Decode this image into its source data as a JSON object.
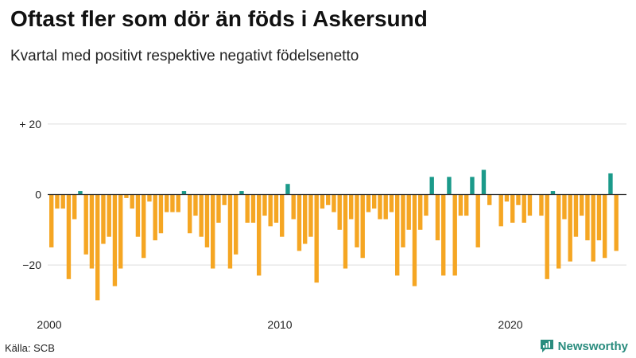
{
  "header": {
    "title": "Oftast fler som dör än föds i Askersund",
    "subtitle": "Kvartal med positivt respektive negativt födelsenetto"
  },
  "footer": {
    "source": "Källa: SCB",
    "brand": "Newsworthy"
  },
  "chart_data": {
    "type": "bar",
    "title": "Oftast fler som dör än föds i Askersund",
    "subtitle": "Kvartal med positivt respektive negativt födelsenetto",
    "xlabel": "",
    "ylabel": "",
    "x_start_year": 2000,
    "x_ticks": [
      "2000",
      "2010",
      "2020"
    ],
    "y_ticks": [
      {
        "value": 20,
        "label": "+ 20"
      },
      {
        "value": 0,
        "label": "0"
      },
      {
        "value": -20,
        "label": "−20"
      }
    ],
    "ylim": [
      -32,
      24
    ],
    "grid": true,
    "colors": {
      "positive": "#1b9a8a",
      "negative": "#f5a623",
      "grid": "#dddddd",
      "zero_line": "#333333"
    },
    "values": [
      -15,
      -4,
      -4,
      -24,
      -7,
      1,
      -17,
      -21,
      -30,
      -14,
      -12,
      -26,
      -21,
      -1,
      -4,
      -12,
      -18,
      -2,
      -13,
      -11,
      -5,
      -5,
      -5,
      1,
      -11,
      -6,
      -12,
      -15,
      -21,
      -8,
      -3,
      -21,
      -17,
      1,
      -8,
      -8,
      -23,
      -6,
      -9,
      -8,
      -12,
      3,
      -7,
      -16,
      -14,
      -12,
      -25,
      -4,
      -3,
      -5,
      -10,
      -21,
      -7,
      -15,
      -18,
      -5,
      -4,
      -7,
      -7,
      -5,
      -23,
      -15,
      -10,
      -26,
      -10,
      -6,
      5,
      -13,
      -23,
      5,
      -23,
      -6,
      -6,
      5,
      -15,
      7,
      -3,
      0,
      -9,
      -2,
      -8,
      -3,
      -8,
      -6,
      0,
      -6,
      -24,
      1,
      -21,
      -7,
      -19,
      -12,
      -6,
      -13,
      -19,
      -13,
      -18,
      6,
      -16
    ]
  }
}
